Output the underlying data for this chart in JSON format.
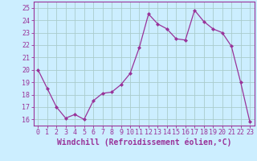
{
  "x": [
    0,
    1,
    2,
    3,
    4,
    5,
    6,
    7,
    8,
    9,
    10,
    11,
    12,
    13,
    14,
    15,
    16,
    17,
    18,
    19,
    20,
    21,
    22,
    23
  ],
  "y": [
    20.0,
    18.5,
    17.0,
    16.1,
    16.4,
    16.0,
    17.5,
    18.1,
    18.2,
    18.8,
    19.7,
    21.8,
    24.5,
    23.7,
    23.3,
    22.5,
    22.4,
    24.8,
    23.9,
    23.3,
    23.0,
    21.9,
    19.0,
    15.8
  ],
  "line_color": "#993399",
  "marker": "D",
  "marker_size": 2,
  "bg_color": "#cceeff",
  "grid_color": "#aacccc",
  "xlabel": "Windchill (Refroidissement éolien,°C)",
  "ylabel_ticks": [
    16,
    17,
    18,
    19,
    20,
    21,
    22,
    23,
    24,
    25
  ],
  "xtick_labels": [
    "0",
    "1",
    "2",
    "3",
    "4",
    "5",
    "6",
    "7",
    "8",
    "9",
    "10",
    "11",
    "12",
    "13",
    "14",
    "15",
    "16",
    "17",
    "18",
    "19",
    "20",
    "21",
    "22",
    "23"
  ],
  "ylim": [
    15.5,
    25.5
  ],
  "xlim": [
    -0.5,
    23.5
  ],
  "tick_color": "#993399",
  "label_color": "#993399",
  "label_fontsize": 7,
  "tick_fontsize": 6
}
